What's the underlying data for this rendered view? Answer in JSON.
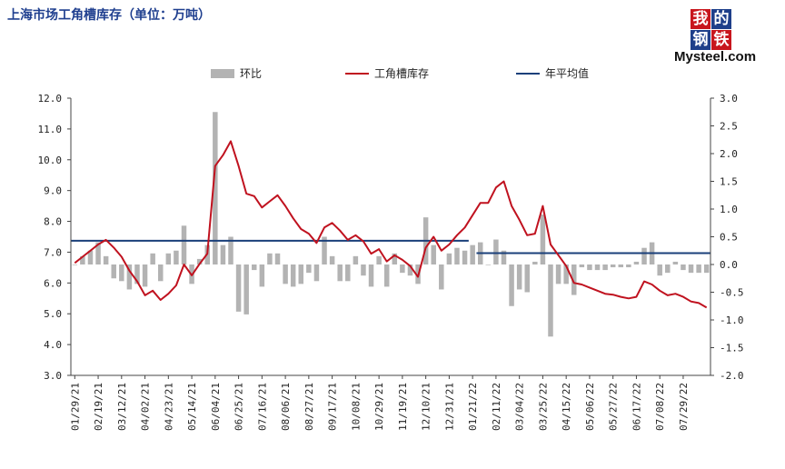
{
  "title": "上海市场工角槽库存（单位：万吨）",
  "logo": {
    "chars": [
      "我",
      "的",
      "钢",
      "铁"
    ],
    "word": "Mysteel.com",
    "colors": [
      "#c8161d",
      "#1e3f8a",
      "#1e3f8a",
      "#c8161d"
    ]
  },
  "legend": [
    {
      "label": "环比",
      "color": "#b3b3b3",
      "kind": "bar"
    },
    {
      "label": "工角槽库存",
      "color": "#c0121f",
      "kind": "line"
    },
    {
      "label": "年平均值",
      "color": "#1a3f7a",
      "kind": "line"
    }
  ],
  "chart_data": {
    "type": "bar+line",
    "x_tick_labels": [
      "01/29/21",
      "02/19/21",
      "03/12/21",
      "04/02/21",
      "04/23/21",
      "05/14/21",
      "06/04/21",
      "06/25/21",
      "07/16/21",
      "08/06/21",
      "08/27/21",
      "09/17/21",
      "10/08/21",
      "10/29/21",
      "11/19/21",
      "12/10/21",
      "12/31/21",
      "01/21/22",
      "02/11/22",
      "03/04/22",
      "03/25/22",
      "04/15/22",
      "05/06/22",
      "05/27/22",
      "06/17/22",
      "07/08/22",
      "07/29/22"
    ],
    "y_left": {
      "ticks": [
        "3.0",
        "4.0",
        "5.0",
        "6.0",
        "7.0",
        "8.0",
        "9.0",
        "10.0",
        "11.0",
        "12.0"
      ],
      "min": 3,
      "max": 12
    },
    "y_right": {
      "ticks": [
        "-2.0",
        "-1.5",
        "-1.0",
        "-0.5",
        "0.0",
        "0.5",
        "1.0",
        "1.5",
        "2.0",
        "2.5",
        "3.0"
      ],
      "min": -2,
      "max": 3
    },
    "series": [
      {
        "name": "工角槽库存",
        "axis": "left",
        "values": [
          6.65,
          6.85,
          7.05,
          7.25,
          7.4,
          7.15,
          6.85,
          6.4,
          6.05,
          5.6,
          5.75,
          5.45,
          5.65,
          5.92,
          6.6,
          6.25,
          6.62,
          6.95,
          9.8,
          10.15,
          10.6,
          9.8,
          8.9,
          8.82,
          8.45,
          8.65,
          8.85,
          8.5,
          8.1,
          7.75,
          7.6,
          7.3,
          7.8,
          7.95,
          7.7,
          7.4,
          7.55,
          7.35,
          6.95,
          7.1,
          6.7,
          6.9,
          6.75,
          6.55,
          6.2,
          7.15,
          7.5,
          7.05,
          7.25,
          7.55,
          7.8,
          8.2,
          8.6,
          8.6,
          9.1,
          9.3,
          8.5,
          8.05,
          7.55,
          7.6,
          8.5,
          7.25,
          6.9,
          6.55,
          6.0,
          5.95,
          5.85,
          5.75,
          5.65,
          5.62,
          5.55,
          5.5,
          5.55,
          6.05,
          5.95,
          5.75,
          5.6,
          5.65,
          5.55,
          5.4,
          5.35,
          5.2
        ]
      },
      {
        "name": "环比",
        "axis": "right",
        "values": [
          0.0,
          0.15,
          0.25,
          0.4,
          0.15,
          -0.25,
          -0.3,
          -0.45,
          -0.35,
          -0.4,
          0.2,
          -0.3,
          0.2,
          0.25,
          0.7,
          -0.35,
          0.1,
          0.35,
          2.75,
          0.35,
          0.5,
          -0.85,
          -0.9,
          -0.1,
          -0.4,
          0.2,
          0.2,
          -0.35,
          -0.4,
          -0.35,
          -0.15,
          -0.3,
          0.5,
          0.15,
          -0.3,
          -0.3,
          0.15,
          -0.2,
          -0.4,
          0.15,
          -0.4,
          0.2,
          -0.15,
          -0.2,
          -0.35,
          0.85,
          0.35,
          -0.45,
          0.2,
          0.3,
          0.25,
          0.35,
          0.4,
          0.0,
          0.45,
          0.25,
          -0.75,
          -0.45,
          -0.5,
          0.05,
          0.9,
          -1.3,
          -0.35,
          -0.35,
          -0.55,
          -0.05,
          -0.1,
          -0.1,
          -0.1,
          -0.05,
          -0.05,
          -0.05,
          0.05,
          0.3,
          0.4,
          -0.2,
          -0.15,
          0.05,
          -0.1,
          -0.15,
          -0.15,
          -0.15
        ]
      },
      {
        "name": "年平均值",
        "axis": "left",
        "segments": [
          {
            "from": 0,
            "to": 50,
            "value": 7.37
          },
          {
            "from": 52,
            "to": 81,
            "value": 6.97
          }
        ]
      }
    ]
  }
}
